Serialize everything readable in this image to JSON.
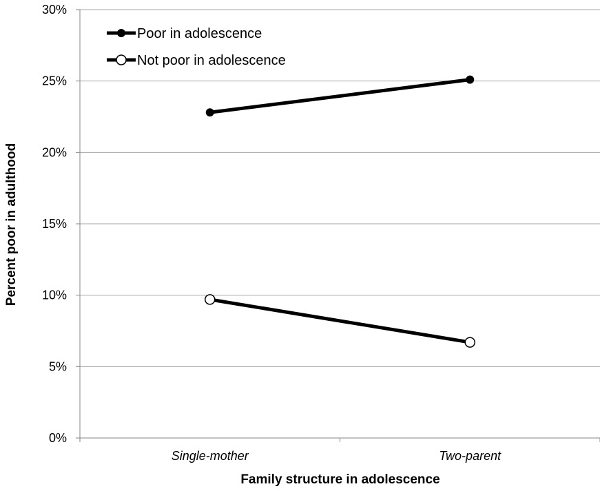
{
  "chart_data": {
    "type": "line",
    "categories": [
      "Single-mother",
      "Two-parent"
    ],
    "series": [
      {
        "name": "Poor in adolescence",
        "values": [
          22.8,
          25.1
        ],
        "marker": "filled-circle"
      },
      {
        "name": "Not poor in adolescence",
        "values": [
          9.7,
          6.7
        ],
        "marker": "open-circle"
      }
    ],
    "xlabel": "Family structure in adolescence",
    "ylabel": "Percent poor in adulthood",
    "ylim": [
      0,
      30
    ],
    "yticks": [
      0,
      5,
      10,
      15,
      20,
      25,
      30
    ],
    "ytick_labels": [
      "0%",
      "5%",
      "10%",
      "15%",
      "20%",
      "25%",
      "30%"
    ],
    "grid": true,
    "legend_position": "top-left",
    "colors": {
      "line": "#000000",
      "grid": "#a6a6a6",
      "axis": "#868686",
      "marker_fill_open": "#ffffff"
    }
  }
}
